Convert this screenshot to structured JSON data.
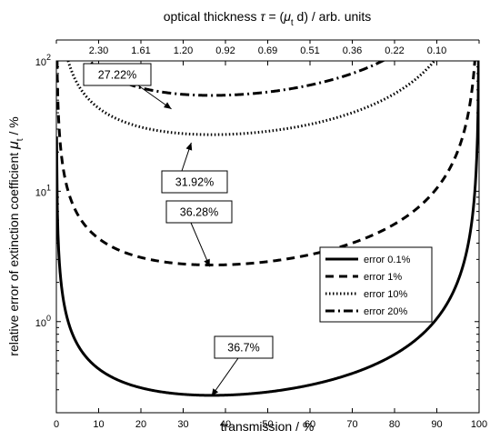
{
  "chart_data": {
    "type": "line",
    "xlabel": "transmission / %",
    "ylabel_main": "relative error of extinction coefficient",
    "ylabel_sym": "μ",
    "ylabel_sub": "t",
    "ylabel_unit": " / %",
    "top_label_pre": "optical thickness ",
    "top_label_tau": "τ",
    "top_label_eq": " = (",
    "top_label_mu": "μ",
    "top_label_sub": "t",
    "top_label_post": " d) / arb. units",
    "xlim": [
      0,
      100
    ],
    "ylim": [
      0.2,
      100
    ],
    "yscale": "log",
    "x_ticks": [
      0,
      10,
      20,
      30,
      40,
      50,
      60,
      70,
      80,
      90,
      100
    ],
    "y_ticks": [
      {
        "base": "10",
        "exp": "0",
        "value": 1
      },
      {
        "base": "10",
        "exp": "1",
        "value": 10
      },
      {
        "base": "10",
        "exp": "2",
        "value": 100
      }
    ],
    "top_ticks": [
      {
        "label": "2.30",
        "x": 10
      },
      {
        "label": "1.61",
        "x": 20
      },
      {
        "label": "1.20",
        "x": 30
      },
      {
        "label": "0.92",
        "x": 40
      },
      {
        "label": "0.69",
        "x": 50
      },
      {
        "label": "0.51",
        "x": 60
      },
      {
        "label": "0.36",
        "x": 70
      },
      {
        "label": "0.22",
        "x": 80
      },
      {
        "label": "0.10",
        "x": 90
      }
    ],
    "series": [
      {
        "name": "error 0.1%",
        "k": 0.1,
        "dash": "",
        "width": 3
      },
      {
        "name": "error 1%",
        "k": 1,
        "dash": "9,6",
        "width": 3
      },
      {
        "name": "error 10%",
        "k": 10,
        "dash": "1.5,2.5",
        "width": 3
      },
      {
        "name": "error 20%",
        "k": 20,
        "dash": "10,4,2,4",
        "width": 3
      }
    ],
    "legend_position": "lower-right",
    "annotations": [
      {
        "text": "27.22%",
        "target": [
          27.22,
          42.8
        ]
      },
      {
        "text": "31.92%",
        "target": [
          31.92,
          23.6
        ]
      },
      {
        "text": "36.28%",
        "target": [
          36.28,
          2.64
        ]
      },
      {
        "text": "36.7%",
        "target": [
          36.7,
          0.268
        ]
      }
    ]
  }
}
